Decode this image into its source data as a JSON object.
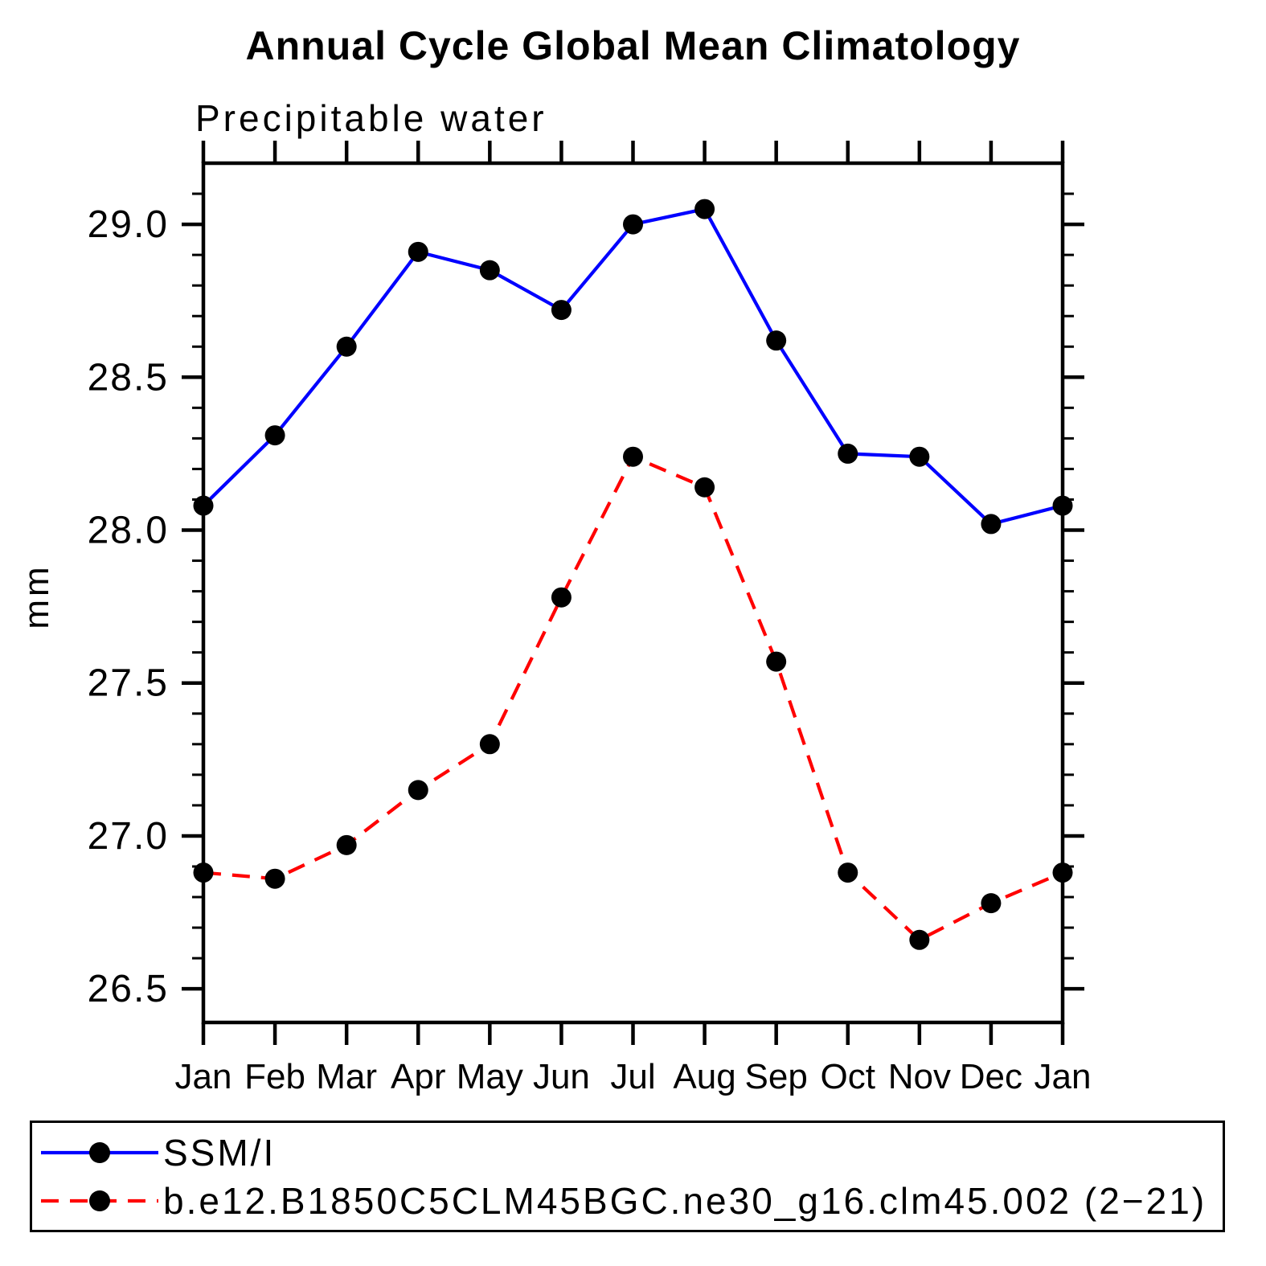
{
  "page": {
    "background": "#FFFFFF"
  },
  "chart_data": {
    "type": "line",
    "title": "Annual Cycle Global Mean Climatology",
    "subtitle": "Precipitable water",
    "ylabel": "mm",
    "xlabel": "",
    "categories": [
      "Jan",
      "Feb",
      "Mar",
      "Apr",
      "May",
      "Jun",
      "Jul",
      "Aug",
      "Sep",
      "Oct",
      "Nov",
      "Dec",
      "Jan"
    ],
    "ylim": [
      26.39,
      29.2
    ],
    "yticks_major": [
      26.5,
      27.0,
      27.5,
      28.0,
      28.5,
      29.0
    ],
    "ytick_labels": [
      "26.5",
      "27.0",
      "27.5",
      "28.0",
      "28.5",
      "29.0"
    ],
    "ytick_minor_step": 0.1,
    "grid": false,
    "legend_position": "bottom-left-box",
    "series": [
      {
        "name": "SSM/I",
        "color": "#0000FF",
        "line_style": "solid",
        "marker": "filled-circle",
        "marker_color": "#000000",
        "values": [
          28.08,
          28.31,
          28.6,
          28.91,
          28.85,
          28.72,
          29.0,
          29.05,
          28.62,
          28.25,
          28.24,
          28.02,
          28.08
        ]
      },
      {
        "name": "b.e12.B1850C5CLM45BGC.ne30_g16.clm45.002 (2−21)",
        "color": "#FF0000",
        "line_style": "dashed",
        "marker": "filled-circle",
        "marker_color": "#000000",
        "values": [
          26.88,
          26.86,
          26.97,
          27.15,
          27.3,
          27.78,
          28.24,
          28.14,
          27.57,
          26.88,
          26.66,
          26.78,
          26.88
        ]
      }
    ]
  }
}
